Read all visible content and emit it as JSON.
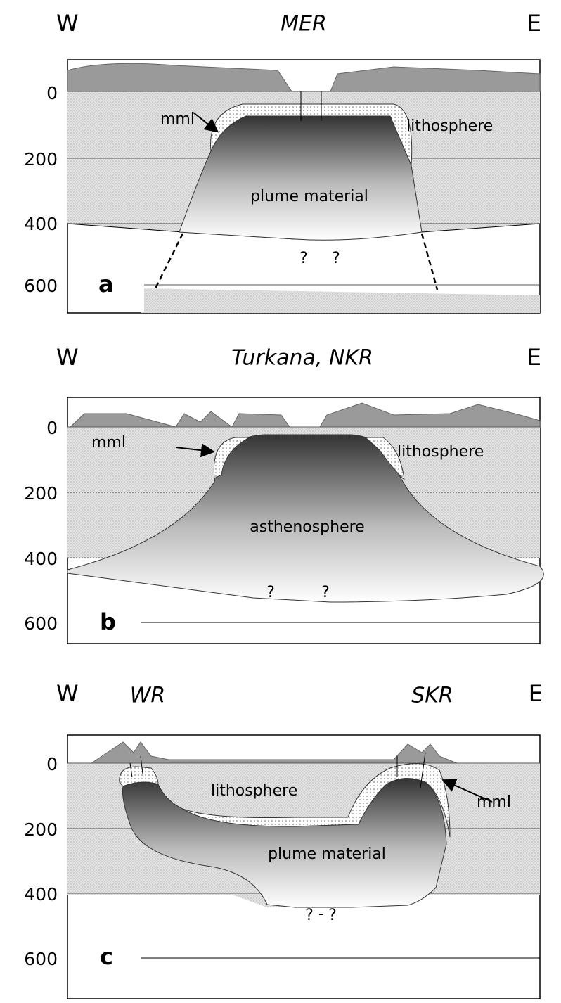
{
  "panels": [
    {
      "west": "W",
      "titles": [
        "MER"
      ],
      "east": "E",
      "depths": [
        "0",
        "200",
        "400",
        "600"
      ],
      "letter": "a",
      "labels": {
        "mml": "mml",
        "lithosphere": "lithosphere",
        "body": "plume material",
        "unknown": [
          "?",
          "?"
        ]
      }
    },
    {
      "west": "W",
      "titles": [
        "Turkana, NKR"
      ],
      "east": "E",
      "depths": [
        "0",
        "200",
        "400",
        "600"
      ],
      "letter": "b",
      "labels": {
        "mml": "mml",
        "lithosphere": "lithosphere",
        "body": "asthenosphere",
        "unknown": [
          "?",
          "?"
        ]
      }
    },
    {
      "west": "W",
      "titles": [
        "WR",
        "SKR"
      ],
      "east": "E",
      "depths": [
        "0",
        "200",
        "400",
        "600"
      ],
      "letter": "c",
      "labels": {
        "mml": "mml",
        "lithosphere": "lithosphere",
        "body": "plume material",
        "unknown": [
          "?",
          "-",
          "?"
        ]
      }
    }
  ]
}
